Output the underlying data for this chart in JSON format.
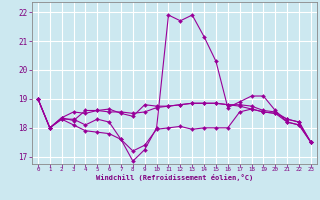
{
  "title": "",
  "xlabel": "Windchill (Refroidissement éolien,°C)",
  "background_color": "#cce8f0",
  "grid_color": "#ffffff",
  "line_color": "#990099",
  "xlim": [
    -0.5,
    23.5
  ],
  "ylim": [
    16.75,
    22.35
  ],
  "yticks": [
    17,
    18,
    19,
    20,
    21,
    22
  ],
  "xticks": [
    0,
    1,
    2,
    3,
    4,
    5,
    6,
    7,
    8,
    9,
    10,
    11,
    12,
    13,
    14,
    15,
    16,
    17,
    18,
    19,
    20,
    21,
    22,
    23
  ],
  "lines": [
    [
      19.0,
      18.0,
      18.3,
      18.3,
      18.1,
      18.3,
      18.2,
      17.6,
      16.85,
      17.25,
      18.0,
      21.9,
      21.7,
      21.9,
      21.15,
      20.3,
      18.7,
      18.9,
      19.1,
      19.1,
      18.6,
      18.2,
      18.1,
      17.5
    ],
    [
      19.0,
      18.0,
      18.35,
      18.55,
      18.5,
      18.6,
      18.55,
      18.55,
      18.5,
      18.55,
      18.7,
      18.75,
      18.8,
      18.85,
      18.85,
      18.85,
      18.8,
      18.8,
      18.75,
      18.6,
      18.55,
      18.3,
      18.2,
      17.5
    ],
    [
      19.0,
      18.0,
      18.35,
      18.25,
      18.6,
      18.6,
      18.65,
      18.5,
      18.4,
      18.8,
      18.75,
      18.75,
      18.8,
      18.85,
      18.85,
      18.85,
      18.8,
      18.75,
      18.65,
      18.55,
      18.5,
      18.3,
      18.2,
      17.5
    ],
    [
      19.0,
      18.0,
      18.3,
      18.1,
      17.9,
      17.85,
      17.8,
      17.6,
      17.2,
      17.4,
      17.95,
      18.0,
      18.05,
      17.95,
      18.0,
      18.0,
      18.0,
      18.55,
      18.65,
      18.55,
      18.5,
      18.2,
      18.1,
      17.5
    ]
  ]
}
